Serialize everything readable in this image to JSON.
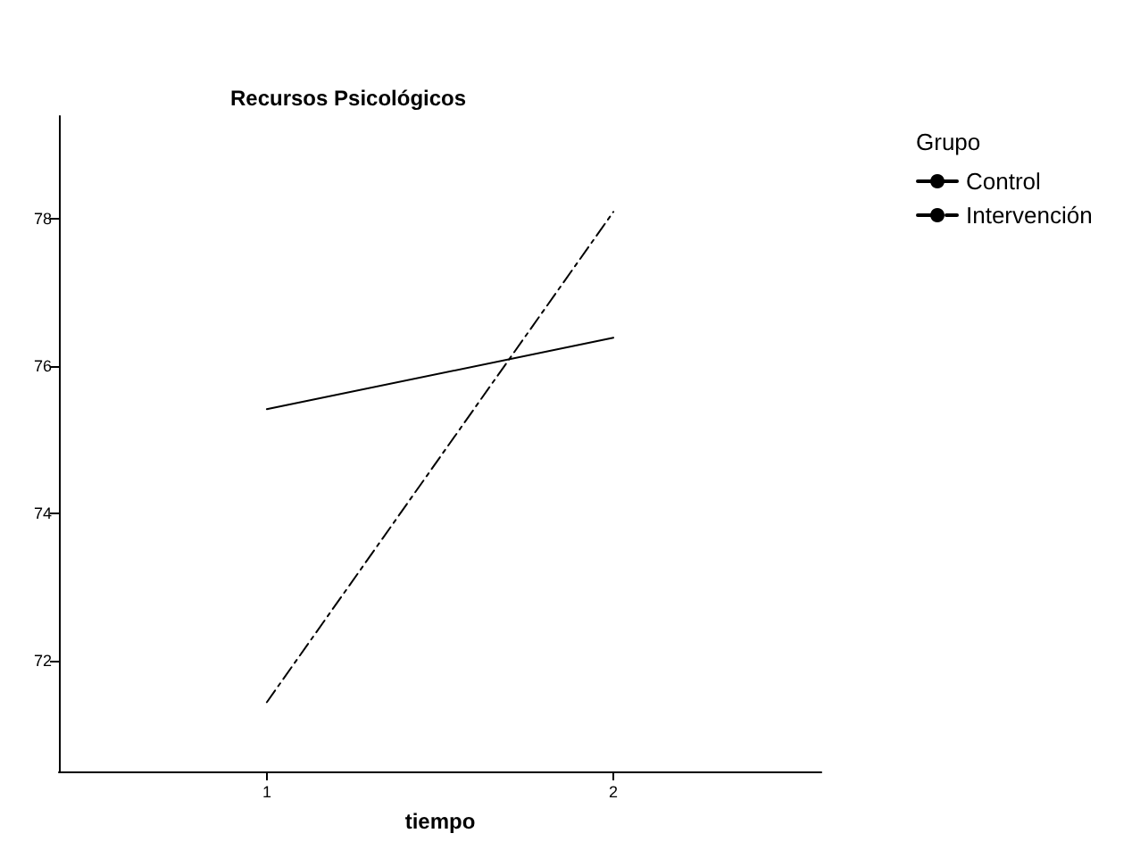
{
  "chart_data": {
    "type": "line",
    "title": "Recursos Psicológicos",
    "xlabel": "tiempo",
    "legend_title": "Grupo",
    "x": [
      1,
      2
    ],
    "series": [
      {
        "name": "Control",
        "color": "#000000",
        "values": [
          75.42,
          76.39
        ],
        "line_style": "solid"
      },
      {
        "name": "Intervención",
        "color": "#000000",
        "values": [
          71.44,
          78.1
        ],
        "line_style": "dashed"
      }
    ],
    "xlim": [
      0.4,
      2.6
    ],
    "xticks": [
      1,
      2
    ],
    "ylim": [
      70.5,
      79.4
    ],
    "yticks": [
      72,
      74,
      76,
      78
    ],
    "grid": false,
    "legend": "top right",
    "marker": "none"
  }
}
